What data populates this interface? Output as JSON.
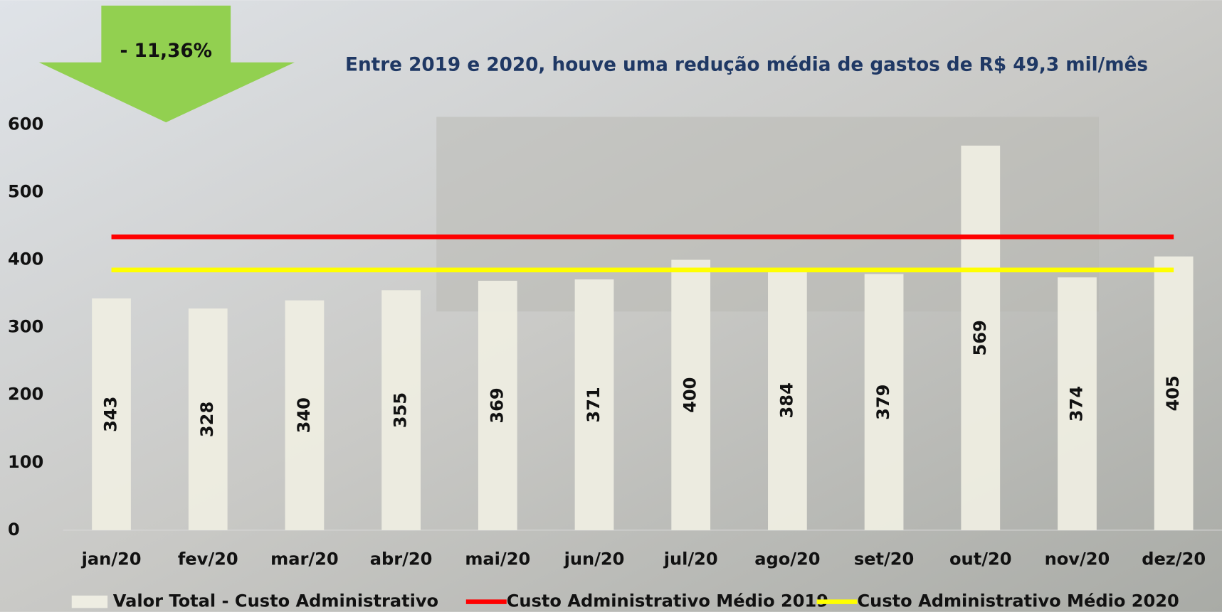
{
  "chart_data": {
    "type": "bar",
    "title": "Entre 2019 e 2020, houve uma redução média de gastos de R$ 49,3 mil/mês",
    "annotation": "- 11,36%",
    "categories": [
      "jan/20",
      "fev/20",
      "mar/20",
      "abr/20",
      "mai/20",
      "jun/20",
      "jul/20",
      "ago/20",
      "set/20",
      "out/20",
      "nov/20",
      "dez/20"
    ],
    "series": [
      {
        "name": "Valor Total - Custo Administrativo",
        "type": "bar",
        "color": "#eeede2",
        "values": [
          343,
          328,
          340,
          355,
          369,
          371,
          400,
          384,
          379,
          569,
          374,
          405
        ]
      },
      {
        "name": "Custo Administrativo Médio 2019",
        "type": "line",
        "color": "#ff0000",
        "values": [
          434,
          434,
          434,
          434,
          434,
          434,
          434,
          434,
          434,
          434,
          434,
          434
        ]
      },
      {
        "name": "Custo Administrativo Médio 2020",
        "type": "line",
        "color": "#ffff00",
        "values": [
          385,
          385,
          385,
          385,
          385,
          385,
          385,
          385,
          385,
          385,
          385,
          385
        ]
      }
    ],
    "ylim": [
      0,
      600
    ],
    "yticks": [
      0,
      100,
      200,
      300,
      400,
      500,
      600
    ],
    "grid": false,
    "legend": "bottom"
  }
}
